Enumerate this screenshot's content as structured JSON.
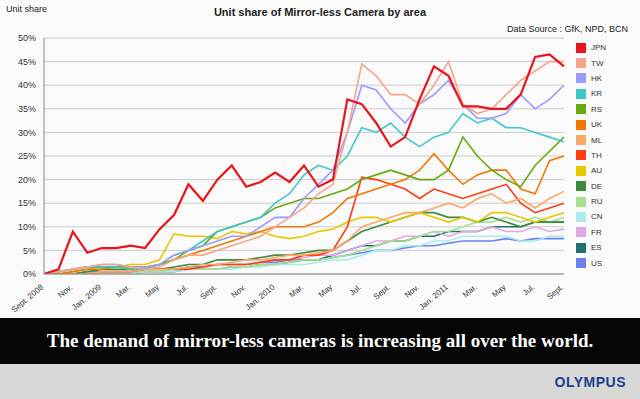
{
  "chart_data": {
    "type": "line",
    "title": "Unit share of Mirror-less Camera by area",
    "subtitle": "Data Source : GfK, NPD, BCN",
    "ylabel": "Unit share",
    "categories": [
      "Sept. 2008",
      null,
      "Nov.",
      null,
      "Jan. 2009",
      null,
      "Mar.",
      null,
      "May",
      null,
      "Jul.",
      null,
      "Sept.",
      null,
      "Nov.",
      null,
      "Jan. 2010",
      null,
      "Mar.",
      null,
      "May",
      null,
      "Jul.",
      null,
      "Sept.",
      null,
      "Nov.",
      null,
      "Jan. 2011",
      null,
      "Mar.",
      null,
      "May",
      null,
      "Jul.",
      null,
      "Sept."
    ],
    "series": [
      {
        "name": "JPN",
        "color": "#e8141c",
        "values": [
          0,
          1,
          9,
          4.5,
          5.5,
          5.5,
          6,
          5.5,
          9.5,
          12.5,
          19,
          15.5,
          20,
          23,
          18.5,
          19.5,
          21.5,
          19.5,
          23,
          18.5,
          20,
          37,
          36,
          32,
          27,
          29,
          37,
          44,
          42,
          35.5,
          35.5,
          35,
          35,
          38,
          46,
          46.5,
          44
        ]
      },
      {
        "name": "TW",
        "color": "#f4a58a",
        "values": [
          0,
          0.5,
          1,
          1.5,
          2,
          2,
          1.5,
          1,
          1.5,
          3,
          4,
          4,
          5,
          6,
          7,
          8,
          10,
          12,
          14,
          17,
          19,
          30,
          44.5,
          42,
          38,
          38,
          36,
          40,
          45,
          36,
          34,
          35,
          38,
          41,
          43,
          45,
          45
        ]
      },
      {
        "name": "HK",
        "color": "#9a9aff",
        "values": [
          0,
          0.5,
          1,
          1.5,
          2,
          2,
          1.5,
          1.5,
          2,
          4,
          5,
          6,
          7,
          8,
          8,
          10,
          12,
          12,
          16,
          19,
          22,
          30,
          40,
          39,
          35,
          32,
          36,
          38,
          41,
          36,
          33,
          33,
          34,
          38,
          35,
          37,
          40
        ]
      },
      {
        "name": "KR",
        "color": "#3cc8c8",
        "values": [
          0,
          0.5,
          1,
          1.5,
          1.5,
          1.5,
          1,
          1,
          2,
          4,
          5,
          7,
          9,
          10,
          11,
          12,
          15,
          17,
          21,
          23,
          22,
          25,
          31,
          30,
          32,
          29,
          27,
          29,
          30,
          34,
          32,
          33,
          31,
          31,
          30,
          29,
          28
        ]
      },
      {
        "name": "RS",
        "color": "#6aaa10",
        "values": [
          0,
          0.5,
          1,
          1.5,
          1.5,
          1.5,
          1,
          1,
          2,
          3,
          5,
          6,
          9,
          10,
          11,
          12,
          14,
          15,
          16,
          16,
          17,
          18,
          20,
          21,
          22,
          21,
          20,
          20,
          22,
          29,
          25,
          22,
          20,
          18.5,
          23,
          26,
          29
        ]
      },
      {
        "name": "UK",
        "color": "#f07800",
        "values": [
          0,
          0,
          0.5,
          1,
          1,
          1.5,
          1.5,
          1.5,
          2,
          3,
          4,
          5,
          6,
          7,
          8,
          9,
          10,
          10,
          10,
          11,
          13,
          16,
          17,
          18,
          19,
          20,
          22,
          25.5,
          22,
          19,
          21,
          22,
          22,
          18,
          17,
          24,
          25
        ]
      },
      {
        "name": "ML",
        "color": "#f8a868",
        "values": [
          0,
          0,
          0,
          0,
          0.5,
          0.5,
          0.5,
          1,
          1,
          1,
          1.5,
          2,
          2,
          2.5,
          3,
          3,
          3.5,
          4,
          4,
          4.5,
          5,
          7,
          10,
          11,
          12,
          13,
          13,
          14,
          15,
          14,
          16,
          17,
          15,
          16,
          14,
          16,
          17.5
        ]
      },
      {
        "name": "TH",
        "color": "#ff3c14",
        "values": [
          0,
          0,
          0,
          0,
          0.5,
          0.5,
          0.5,
          1,
          1,
          1,
          1,
          1.5,
          2,
          2,
          2,
          2.5,
          3,
          3,
          4,
          4,
          5,
          10,
          20.5,
          20,
          19,
          18,
          16,
          18,
          17,
          16,
          17,
          18,
          19,
          15,
          13,
          14,
          15
        ]
      },
      {
        "name": "AU",
        "color": "#e8c800",
        "values": [
          0,
          0,
          0.5,
          1,
          1.5,
          1.5,
          2,
          2,
          3,
          8.5,
          8,
          8,
          7.5,
          9,
          8.5,
          9,
          8,
          7.5,
          8,
          9,
          9.5,
          11,
          12,
          12,
          11,
          12,
          13,
          12,
          11,
          12,
          11,
          13,
          13,
          12,
          11,
          12,
          13
        ]
      },
      {
        "name": "DE",
        "color": "#3c8c3c",
        "values": [
          0,
          0,
          0,
          0.5,
          1,
          1,
          1,
          1,
          1,
          1.5,
          2,
          2,
          3,
          3,
          3,
          3.5,
          4,
          4,
          4.5,
          5,
          5,
          7,
          9,
          10,
          11,
          12,
          13,
          13,
          12,
          12,
          11,
          12,
          11,
          10,
          11,
          11,
          11
        ]
      },
      {
        "name": "RU",
        "color": "#a8e090",
        "values": [
          0,
          0,
          0,
          0,
          0,
          0,
          0.5,
          0.5,
          0.5,
          1,
          1,
          1,
          1,
          1.5,
          1.5,
          2,
          2,
          2.5,
          3,
          3,
          3.5,
          4,
          5,
          6,
          7,
          7,
          8,
          9,
          9,
          10,
          11,
          11,
          12,
          11,
          12,
          11,
          12
        ]
      },
      {
        "name": "CN",
        "color": "#a8ecec",
        "values": [
          0,
          0,
          0,
          0,
          0,
          0,
          0,
          0.5,
          0.5,
          0.5,
          1,
          1,
          1,
          1,
          1.5,
          1.5,
          2,
          2,
          2,
          2.5,
          3,
          3,
          4,
          5,
          5,
          6,
          6,
          7,
          7,
          8,
          8,
          8,
          8,
          7,
          7,
          8,
          8
        ]
      },
      {
        "name": "FR",
        "color": "#e0a8e0",
        "values": [
          0,
          0,
          0,
          0,
          0,
          0.5,
          0.5,
          0.5,
          1,
          1,
          1,
          1.5,
          2,
          2,
          2,
          2.5,
          3,
          3,
          3.5,
          4,
          4,
          5,
          6,
          7,
          7,
          8,
          8,
          9,
          8,
          9,
          9,
          10,
          9,
          9,
          10,
          9,
          9.5
        ]
      },
      {
        "name": "ES",
        "color": "#207070",
        "values": [
          0,
          0,
          0,
          0,
          0,
          0,
          0,
          0.5,
          0.5,
          0.5,
          1,
          1,
          1,
          1.5,
          1.5,
          2,
          2,
          2.5,
          3,
          3,
          4,
          5,
          6,
          6,
          7,
          7,
          8,
          8,
          9,
          9,
          9,
          10,
          10,
          10,
          11,
          11,
          11
        ]
      },
      {
        "name": "US",
        "color": "#6a82f0",
        "values": [
          0,
          0,
          0,
          0.5,
          0.5,
          0.5,
          0.5,
          1,
          1,
          1,
          1.5,
          1.5,
          2,
          2,
          2,
          2.5,
          2.5,
          3,
          3,
          3,
          3.5,
          4,
          4.5,
          5,
          5,
          5.5,
          6,
          6,
          6.5,
          7,
          7,
          7,
          7.5,
          7,
          7.5,
          7.5,
          7.5
        ]
      }
    ],
    "ylim": [
      0,
      50
    ],
    "yticks": [
      {
        "value": 0,
        "label": "0%"
      },
      {
        "value": 5,
        "label": "5%"
      },
      {
        "value": 10,
        "label": "10%"
      },
      {
        "value": 15,
        "label": "15%"
      },
      {
        "value": 20,
        "label": "20%"
      },
      {
        "value": 25,
        "label": "25%"
      },
      {
        "value": 30,
        "label": "30%"
      },
      {
        "value": 35,
        "label": "35%"
      },
      {
        "value": 40,
        "label": "40%"
      },
      {
        "value": 45,
        "label": "45%"
      },
      {
        "value": 50,
        "label": "50%"
      }
    ],
    "grid": true,
    "legend": "right"
  },
  "caption": "The demand of mirror-less cameras is increasing all over the world.",
  "logo": "OLYMPUS"
}
